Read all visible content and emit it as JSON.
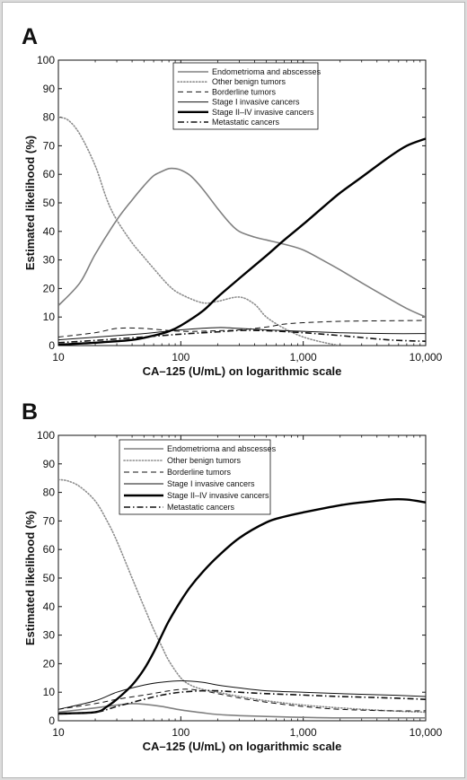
{
  "chart_data": [
    {
      "panel": "A",
      "type": "line",
      "xlabel": "CA–125 (U/mL) on logarithmic scale",
      "ylabel": "Estimated likelihood (%)",
      "x_scale": "log",
      "xlim": [
        10,
        10000
      ],
      "ylim": [
        0,
        100
      ],
      "xticks": [
        "10",
        "100",
        "1,000",
        "10,000"
      ],
      "yticks": [
        "0",
        "10",
        "20",
        "30",
        "40",
        "50",
        "60",
        "70",
        "80",
        "90",
        "100"
      ],
      "legend_position": "top-center",
      "series": [
        {
          "name": "Endometrioma and abscesses",
          "color": "#808080",
          "dash": "solid",
          "width": "medium",
          "x": [
            10,
            15,
            20,
            30,
            40,
            50,
            60,
            70,
            80,
            90,
            100,
            120,
            150,
            200,
            250,
            300,
            400,
            500,
            700,
            1000,
            1500,
            2000,
            3000,
            5000,
            7000,
            10000
          ],
          "y": [
            14,
            22,
            32,
            44,
            51,
            56,
            59.5,
            61,
            62,
            62,
            61.5,
            59.5,
            55,
            48,
            43,
            40,
            38,
            37,
            35.5,
            33.5,
            29.5,
            26.5,
            22,
            16.5,
            13,
            10
          ]
        },
        {
          "name": "Other benign tumors",
          "color": "#8c8c8c",
          "dash": "dotted",
          "width": "medium",
          "x": [
            10,
            12,
            15,
            20,
            25,
            30,
            40,
            50,
            60,
            80,
            100,
            150,
            200,
            300,
            400,
            500,
            700,
            1000,
            1500,
            2000
          ],
          "y": [
            80,
            79,
            74,
            63,
            51,
            44,
            36,
            31,
            27,
            21,
            18,
            15,
            15.5,
            17,
            14.5,
            10,
            6,
            3,
            1,
            0
          ]
        },
        {
          "name": "Borderline tumors",
          "color": "#111111",
          "dash": "dashed",
          "width": "thin",
          "x": [
            10,
            20,
            30,
            50,
            100,
            200,
            300,
            500,
            700,
            1000,
            2000,
            5000,
            10000
          ],
          "y": [
            3,
            4.5,
            6,
            6,
            5,
            5.2,
            5.5,
            6.5,
            7.5,
            8,
            8.5,
            8.7,
            8.8
          ]
        },
        {
          "name": "Stage I invasive cancers",
          "color": "#111111",
          "dash": "solid",
          "width": "thin",
          "x": [
            10,
            30,
            50,
            100,
            200,
            300,
            500,
            1000,
            2000,
            5000,
            10000
          ],
          "y": [
            2,
            3.5,
            4.2,
            5.5,
            6.3,
            6,
            5.5,
            5,
            4.5,
            4.2,
            4.2
          ]
        },
        {
          "name": "Stage II–IV invasive cancers",
          "color": "#000000",
          "dash": "solid",
          "width": "thick",
          "x": [
            10,
            20,
            40,
            60,
            80,
            100,
            150,
            200,
            300,
            500,
            700,
            1000,
            1500,
            2000,
            3000,
            5000,
            7000,
            10000
          ],
          "y": [
            0.3,
            1,
            2,
            3.5,
            5,
            7,
            12,
            17,
            23.5,
            31.5,
            37,
            42.5,
            49,
            53.5,
            59,
            66,
            70,
            72.5
          ]
        },
        {
          "name": "Metastatic cancers",
          "color": "#111111",
          "dash": "dashdot",
          "width": "medium",
          "x": [
            10,
            20,
            50,
            100,
            200,
            300,
            500,
            1000,
            2000,
            5000,
            10000
          ],
          "y": [
            1,
            1.8,
            3,
            4,
            4.8,
            5.3,
            5.2,
            4.5,
            3.5,
            2,
            1.5
          ]
        }
      ]
    },
    {
      "panel": "B",
      "type": "line",
      "xlabel": "CA–125 (U/mL) on logarithmic scale",
      "ylabel": "Estimated likelihood (%)",
      "x_scale": "log",
      "xlim": [
        10,
        10000
      ],
      "ylim": [
        0,
        100
      ],
      "xticks": [
        "10",
        "100",
        "1,000",
        "10,000"
      ],
      "yticks": [
        "0",
        "10",
        "20",
        "30",
        "40",
        "50",
        "60",
        "70",
        "80",
        "90",
        "100"
      ],
      "legend_position": "top-left",
      "series": [
        {
          "name": "Endometrioma and abscesses",
          "color": "#808080",
          "dash": "solid",
          "width": "medium",
          "x": [
            10,
            20,
            30,
            40,
            50,
            70,
            100,
            150,
            200,
            300,
            500,
            1000,
            2000,
            5000,
            10000
          ],
          "y": [
            3,
            4.5,
            5.5,
            6,
            5.8,
            5,
            3.8,
            2.8,
            2.2,
            1.8,
            1.5,
            1.2,
            1,
            1,
            1
          ]
        },
        {
          "name": "Other benign tumors",
          "color": "#8c8c8c",
          "dash": "dotted",
          "width": "medium",
          "x": [
            10,
            12,
            15,
            20,
            25,
            30,
            40,
            50,
            60,
            70,
            80,
            100,
            120,
            150,
            200,
            300,
            500,
            1000,
            2000,
            5000,
            10000
          ],
          "y": [
            84.5,
            84,
            82,
            77,
            70,
            63,
            50,
            40,
            32,
            26,
            21,
            15,
            12.5,
            11,
            10,
            8.5,
            7,
            5.5,
            4.5,
            3.5,
            3
          ]
        },
        {
          "name": "Borderline tumors",
          "color": "#111111",
          "dash": "dashed",
          "width": "thin",
          "x": [
            10,
            20,
            30,
            50,
            100,
            150,
            200,
            300,
            500,
            1000,
            2000,
            5000,
            10000
          ],
          "y": [
            4,
            6,
            7.5,
            9,
            11,
            10.5,
            9.5,
            8,
            6.5,
            5,
            4,
            3.5,
            3.5
          ]
        },
        {
          "name": "Stage I invasive cancers",
          "color": "#111111",
          "dash": "solid",
          "width": "thin",
          "x": [
            10,
            20,
            30,
            50,
            70,
            100,
            150,
            200,
            300,
            500,
            1000,
            2000,
            5000,
            10000
          ],
          "y": [
            4,
            7,
            10,
            12.5,
            13.5,
            14,
            13.5,
            12.5,
            11.5,
            10.5,
            10,
            9.5,
            9,
            8.5
          ]
        },
        {
          "name": "Stage II–IV invasive cancers",
          "color": "#000000",
          "dash": "solid",
          "width": "thick",
          "x": [
            10,
            20,
            25,
            30,
            40,
            50,
            60,
            70,
            80,
            100,
            120,
            150,
            200,
            300,
            500,
            700,
            1000,
            2000,
            3000,
            5000,
            7000,
            10000
          ],
          "y": [
            2.5,
            3,
            5,
            7.5,
            12.5,
            18,
            24,
            30,
            35,
            42,
            47,
            52,
            57.5,
            64,
            69.5,
            71.5,
            73,
            75.5,
            76.5,
            77.5,
            77.5,
            76.5
          ]
        },
        {
          "name": "Metastatic cancers",
          "color": "#111111",
          "dash": "dashdot",
          "width": "medium",
          "x": [
            10,
            20,
            30,
            50,
            70,
            100,
            150,
            200,
            300,
            500,
            1000,
            2000,
            5000,
            10000
          ],
          "y": [
            2.5,
            3,
            5,
            7.5,
            9,
            10,
            10.5,
            10.5,
            10,
            9.5,
            9,
            8.5,
            8,
            7.5
          ]
        }
      ]
    }
  ]
}
